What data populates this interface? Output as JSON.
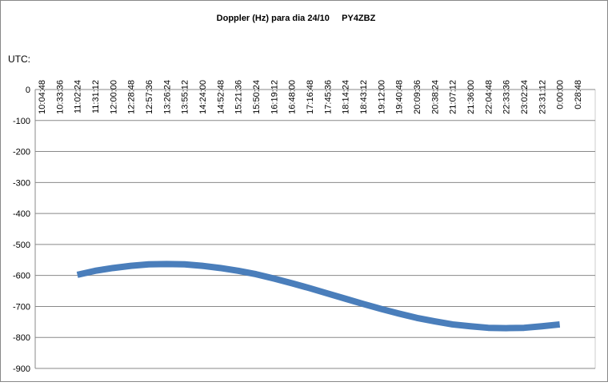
{
  "chart_data": {
    "type": "line",
    "title": "Doppler (Hz) para dia 24/10     PY4ZBZ",
    "x_label": "UTC:",
    "categories": [
      "10:04:48",
      "10:33:36",
      "11:02:24",
      "11:31:12",
      "12:00:00",
      "12:28:48",
      "12:57:36",
      "13:26:24",
      "13:55:12",
      "14:24:00",
      "14:52:48",
      "15:21:36",
      "15:50:24",
      "16:19:12",
      "16:48:00",
      "17:16:48",
      "17:45:36",
      "18:14:24",
      "18:43:12",
      "19:12:00",
      "19:40:48",
      "20:09:36",
      "20:38:24",
      "21:07:12",
      "21:36:00",
      "22:04:48",
      "22:33:36",
      "23:02:24",
      "23:31:12",
      "0:00:00",
      "0:28:48"
    ],
    "series": [
      {
        "name": "Doppler",
        "color": "#4a7ebb",
        "values": [
          null,
          null,
          -598,
          -585,
          -576,
          -569,
          -564,
          -563,
          -564,
          -569,
          -576,
          -585,
          -596,
          -610,
          -625,
          -641,
          -658,
          -675,
          -692,
          -708,
          -723,
          -737,
          -748,
          -758,
          -764,
          -769,
          -770,
          -769,
          -764,
          -758,
          null
        ]
      }
    ],
    "ylim": [
      -900,
      0
    ],
    "yticks": [
      0,
      -100,
      -200,
      -300,
      -400,
      -500,
      -600,
      -700,
      -800,
      -900
    ],
    "grid": true
  }
}
